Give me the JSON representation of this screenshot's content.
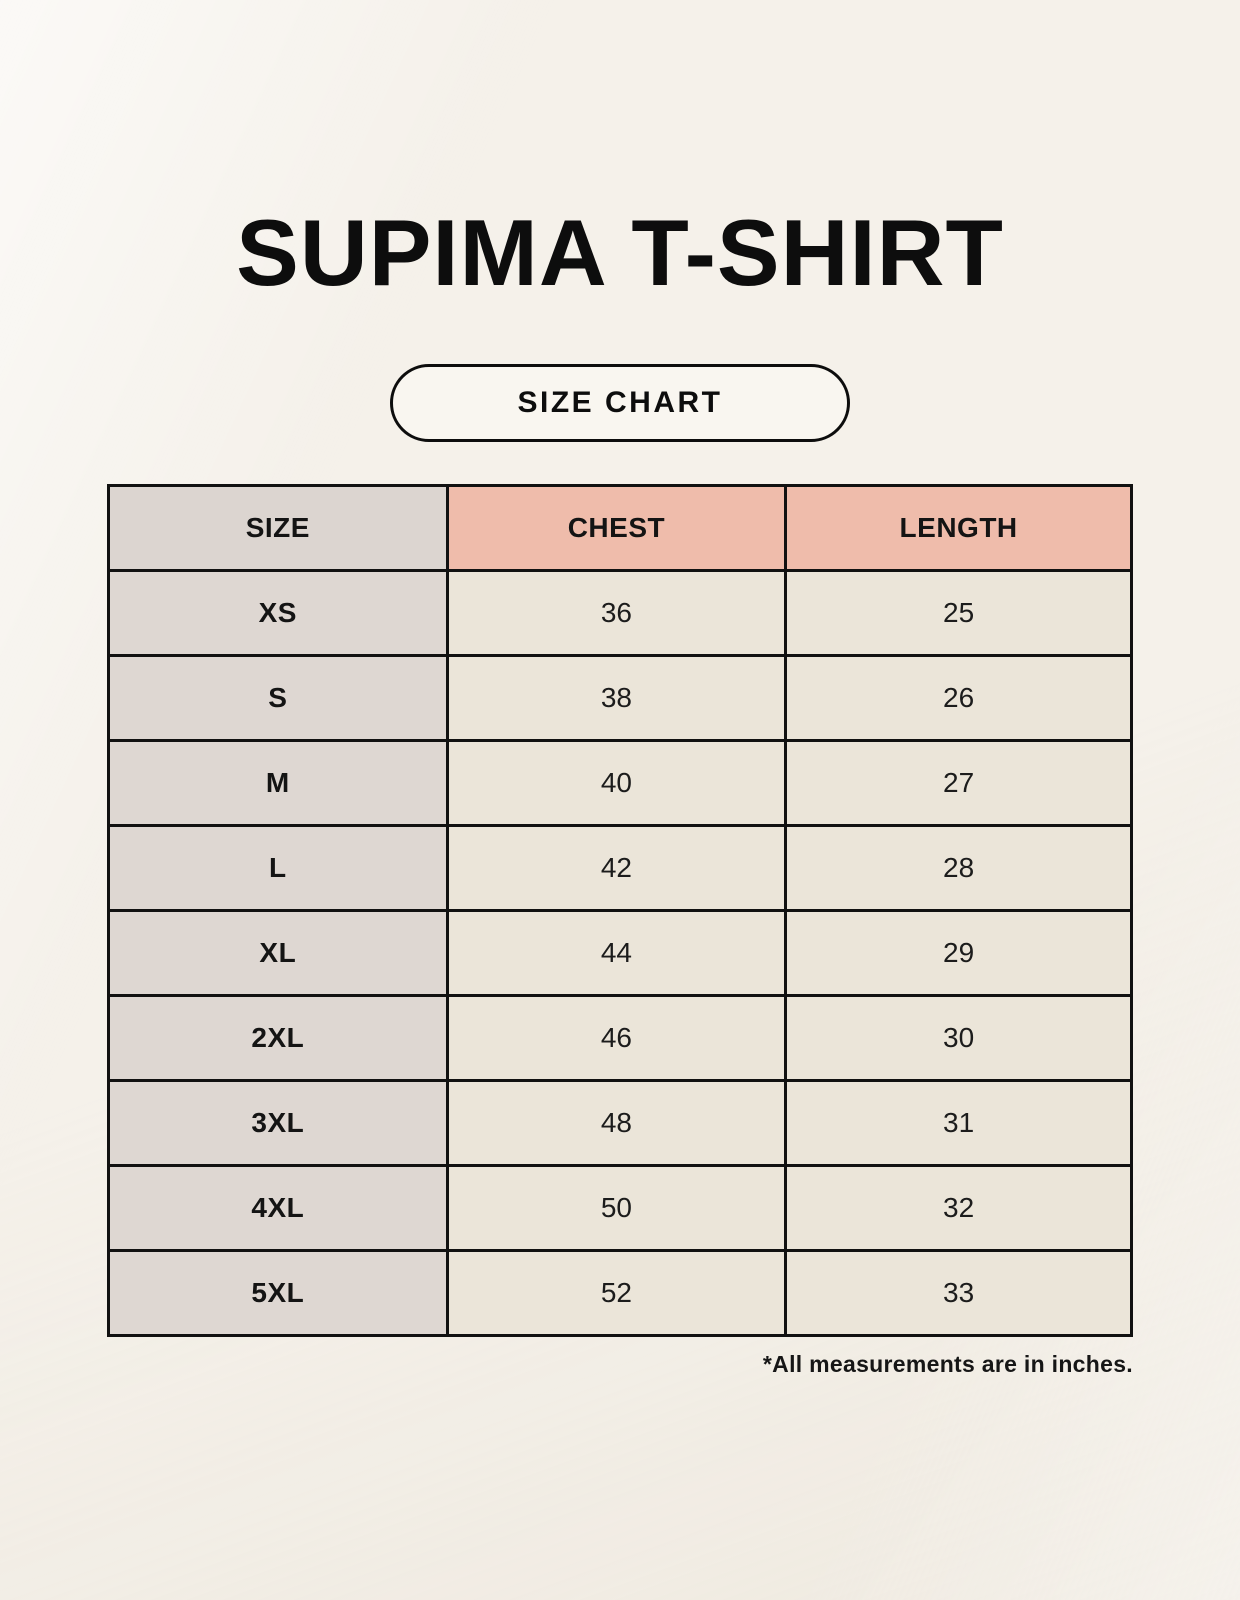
{
  "page": {
    "title": "SUPIMA T-SHIRT",
    "size_chart_badge": "SIZE CHART",
    "footnote": "*All measurements are in inches."
  },
  "chart_data": {
    "type": "table",
    "title": "SUPIMA T-SHIRT",
    "columns": [
      "SIZE",
      "CHEST",
      "LENGTH"
    ],
    "rows": [
      {
        "size": "XS",
        "chest": 36,
        "length": 25
      },
      {
        "size": "S",
        "chest": 38,
        "length": 26
      },
      {
        "size": "M",
        "chest": 40,
        "length": 27
      },
      {
        "size": "L",
        "chest": 42,
        "length": 28
      },
      {
        "size": "XL",
        "chest": 44,
        "length": 29
      },
      {
        "size": "2XL",
        "chest": 46,
        "length": 30
      },
      {
        "size": "3XL",
        "chest": 48,
        "length": 31
      },
      {
        "size": "4XL",
        "chest": 50,
        "length": 32
      },
      {
        "size": "5XL",
        "chest": 52,
        "length": 33
      }
    ],
    "units_note": "*All measurements are in inches."
  },
  "colors": {
    "background": "#f5f1ea",
    "header_size_bg": "#dcd5d0",
    "header_accent_bg": "#efbcab",
    "size_column_bg": "#ded7d2",
    "data_cell_bg": "#ebe5d9",
    "border": "#111111",
    "text": "#141414"
  }
}
